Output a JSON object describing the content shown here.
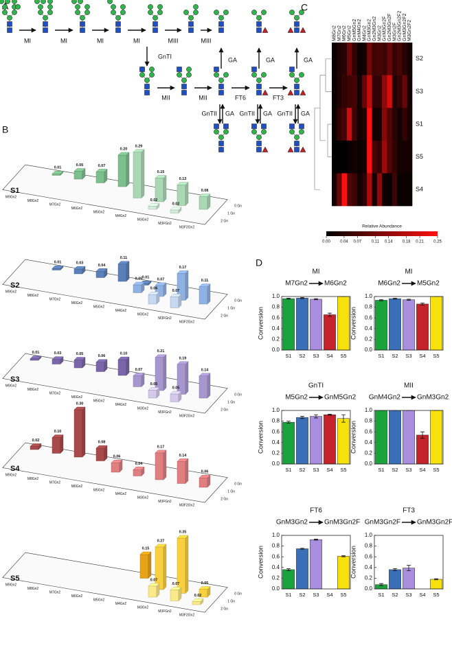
{
  "panel_labels": [
    "A",
    "B",
    "C",
    "D"
  ],
  "pathway": {
    "steps_top": [
      "MI",
      "MI",
      "MI",
      "MI",
      "MIII",
      "MIII"
    ],
    "gnti": "GnTI",
    "steps_middle": [
      "MII",
      "MII",
      "FT6",
      "FT3"
    ],
    "ga_up": [
      "GA",
      "GA",
      "GA"
    ],
    "reversible": [
      {
        "forward": "GnTII",
        "reverse": "GA"
      },
      {
        "forward": "GnTII",
        "reverse": "GA"
      },
      {
        "forward": "GnTII",
        "reverse": "GA"
      }
    ]
  },
  "chart_data": [
    {
      "type": "bar3d",
      "title": "S1",
      "categories": [
        "M9Gn2",
        "M8Gn2",
        "M7Gn2",
        "M6Gn2",
        "M5Gn2",
        "M4Gn2",
        "M3Gn2",
        "M3FGn2",
        "M3F2Gn2"
      ],
      "series": [
        {
          "name": "0 Gn",
          "color": "#7dbf8e",
          "values": [
            null,
            0.01,
            0.05,
            0.07,
            0.2,
            null,
            null,
            null,
            null
          ],
          "value_labels": [
            null,
            "0.01",
            "0.05",
            "0.07",
            "0.20",
            null,
            null,
            null,
            null
          ]
        },
        {
          "name": "1 Gn",
          "color": "#a9d8b4",
          "values": [
            null,
            null,
            null,
            null,
            null,
            0.29,
            0.15,
            0.13,
            0.08
          ],
          "value_labels": [
            null,
            null,
            null,
            null,
            null,
            "0.29",
            "0.15",
            "0.13",
            "0.08"
          ]
        },
        {
          "name": "2 Gn",
          "color": "#d3ecd9",
          "values": [
            null,
            null,
            null,
            null,
            null,
            null,
            0.02,
            0.02,
            null
          ],
          "value_labels": [
            null,
            null,
            null,
            null,
            null,
            null,
            "0.02",
            "0.02",
            null
          ]
        }
      ]
    },
    {
      "type": "bar3d",
      "title": "S2",
      "categories": [
        "M9Gn2",
        "M8Gn2",
        "M7Gn2",
        "M6Gn2",
        "M5Gn2",
        "M4Gn2",
        "M3Gn2",
        "M3FGn2",
        "M3F2Gn2"
      ],
      "series": [
        {
          "name": "0 Gn",
          "color": "#5b7fb8",
          "values": [
            null,
            0.01,
            0.03,
            0.04,
            0.11,
            0.01,
            null,
            null,
            null
          ],
          "value_labels": [
            null,
            "0.01",
            "0.03",
            "0.04",
            "0.11",
            "0.01",
            null,
            null,
            null
          ]
        },
        {
          "name": "1 Gn",
          "color": "#8fb2e3",
          "values": [
            null,
            null,
            null,
            null,
            null,
            0.05,
            0.07,
            0.17,
            0.11
          ],
          "value_labels": [
            null,
            null,
            null,
            null,
            null,
            "0.05",
            "0.07",
            "0.17",
            "0.11"
          ]
        },
        {
          "name": "2 Gn",
          "color": "#c6d8f2",
          "values": [
            null,
            null,
            null,
            null,
            null,
            null,
            0.06,
            0.07,
            null
          ],
          "value_labels": [
            null,
            null,
            null,
            null,
            null,
            null,
            "0.06",
            "0.07",
            null
          ]
        }
      ]
    },
    {
      "type": "bar3d",
      "title": "S3",
      "categories": [
        "M9Gn2",
        "M8Gn2",
        "M7Gn2",
        "M6Gn2",
        "M5Gn2",
        "M4Gn2",
        "M3Gn2",
        "M3FGn2",
        "M3F2Gn2"
      ],
      "series": [
        {
          "name": "0 Gn",
          "color": "#7a66a8",
          "values": [
            0.01,
            0.03,
            0.05,
            0.06,
            0.1,
            null,
            null,
            null,
            null
          ],
          "value_labels": [
            "0.01",
            "0.03",
            "0.05",
            "0.06",
            "0.10",
            null,
            null,
            null,
            null
          ]
        },
        {
          "name": "1 Gn",
          "color": "#a996cf",
          "values": [
            null,
            null,
            null,
            null,
            null,
            0.07,
            0.21,
            0.19,
            0.14
          ],
          "value_labels": [
            null,
            null,
            null,
            null,
            null,
            "0.07",
            "0.21",
            "0.19",
            "0.14"
          ]
        },
        {
          "name": "2 Gn",
          "color": "#d4c9ea",
          "values": [
            null,
            null,
            null,
            null,
            null,
            null,
            0.05,
            0.05,
            null
          ],
          "value_labels": [
            null,
            null,
            null,
            null,
            null,
            null,
            "0.05",
            "0.05",
            null
          ]
        }
      ]
    },
    {
      "type": "bar3d",
      "title": "S4",
      "categories": [
        "M9Gn2",
        "M8Gn2",
        "M7Gn2",
        "M6Gn2",
        "M5Gn2",
        "M4Gn2",
        "M3Gn2",
        "M3FGn2",
        "M3F2Gn2"
      ],
      "series": [
        {
          "name": "0 Gn",
          "color": "#a84a4a",
          "values": [
            0.02,
            0.1,
            0.3,
            0.08,
            null,
            null,
            null,
            null,
            null
          ],
          "value_labels": [
            "0.02",
            "0.10",
            "0.30",
            "0.08",
            null,
            null,
            null,
            null,
            null
          ]
        },
        {
          "name": "1 Gn",
          "color": "#e07f80",
          "values": [
            null,
            null,
            null,
            null,
            0.06,
            0.04,
            0.17,
            0.14,
            0.06
          ],
          "value_labels": [
            null,
            null,
            null,
            null,
            "0.06",
            "0.04",
            "0.17",
            "0.14",
            "0.06"
          ]
        },
        {
          "name": "2 Gn",
          "color": "#f2b8b8",
          "values": [
            null,
            null,
            null,
            null,
            null,
            null,
            null,
            null,
            null
          ],
          "value_labels": [
            null,
            null,
            null,
            null,
            null,
            null,
            null,
            null,
            null
          ]
        }
      ]
    },
    {
      "type": "bar3d",
      "title": "S5",
      "categories": [
        "M9Gn2",
        "M8Gn2",
        "M7Gn2",
        "M6Gn2",
        "M5Gn2",
        "M4Gn2",
        "M3Gn2",
        "M3FGn2",
        "M3F2Gn2"
      ],
      "series": [
        {
          "name": "0 Gn",
          "color": "#e6a31a",
          "values": [
            null,
            null,
            null,
            null,
            null,
            0.15,
            null,
            null,
            null
          ],
          "value_labels": [
            null,
            null,
            null,
            null,
            null,
            "0.15",
            null,
            null,
            null
          ]
        },
        {
          "name": "1 Gn",
          "color": "#f8d040",
          "values": [
            null,
            null,
            null,
            null,
            null,
            null,
            0.27,
            0.35,
            0.05
          ],
          "value_labels": [
            null,
            null,
            null,
            null,
            null,
            null,
            "0.27",
            "0.35",
            "0.05"
          ]
        },
        {
          "name": "2 Gn",
          "color": "#fbe98a",
          "values": [
            null,
            null,
            null,
            null,
            null,
            null,
            0.07,
            0.07,
            0.02
          ],
          "value_labels": [
            null,
            null,
            null,
            null,
            null,
            null,
            "0.07",
            "0.07",
            "0.02"
          ]
        }
      ]
    },
    {
      "type": "heatmap",
      "columns": [
        "M8Gn2",
        "M7Gn2",
        "M6Gn2",
        "M5Gn2",
        "GnM5Gn2",
        "GnM4Gn2",
        "M4Gn2",
        "GnM3Gn2",
        "Gn2M3Gn2",
        "M3Gn2",
        "GnM3Gn2F",
        "Gn2M3Gn2F",
        "M3Gn2F",
        "Gn2M3Gn2F2",
        "GnM3Gn2F2",
        "M3Gn2F2"
      ],
      "rows": [
        "S2",
        "S3",
        "S1",
        "S5",
        "S4"
      ],
      "values": [
        [
          0.01,
          0.03,
          0.04,
          0.11,
          0.05,
          0.01,
          0.02,
          0.11,
          0.06,
          0.07,
          0.06,
          0.1,
          0.05,
          0.07,
          0.04,
          0.02
        ],
        [
          0.01,
          0.03,
          0.05,
          0.06,
          0.07,
          0.02,
          0.1,
          0.19,
          0.05,
          0.05,
          0.14,
          0.21,
          0.03,
          0.05,
          0.1,
          0.02
        ],
        [
          0.01,
          0.05,
          0.07,
          0.2,
          0.06,
          0.02,
          0.03,
          0.25,
          0.02,
          0.02,
          0.13,
          0.08,
          0.04,
          0.02,
          0.05,
          0.02
        ],
        [
          0,
          0,
          0,
          0.01,
          0.02,
          0.01,
          0.02,
          0.25,
          0.07,
          0.05,
          0.15,
          0.08,
          0.05,
          0.02,
          0.02,
          0.02
        ],
        [
          0.02,
          0.1,
          0.25,
          0.08,
          0.06,
          0.02,
          0.04,
          0.17,
          0.02,
          0.14,
          0.02,
          0.01,
          0.06,
          0.01,
          0.01,
          0.01
        ]
      ],
      "colorbar": {
        "label": "Relative Abundance",
        "zlim": [
          0,
          0.25
        ],
        "colors": [
          "#000000",
          "#ff1010"
        ],
        "ticks": [
          {
            "value": 0,
            "label": "0.00"
          },
          0.04,
          0.07,
          0.11,
          0.14,
          0.18,
          0.21,
          0.25
        ]
      }
    },
    {
      "type": "bar",
      "title": "MI",
      "reaction": {
        "from": "M7Gn2",
        "to": "M6Gn2"
      },
      "ylabel": "Conversion",
      "categories": [
        "S1",
        "S2",
        "S3",
        "S4",
        "S5"
      ],
      "values": [
        0.96,
        0.97,
        0.95,
        0.66,
        1
      ],
      "errors": [
        0.01,
        0.01,
        0.01,
        0.03,
        0
      ],
      "colors": [
        "#1aa33c",
        "#3a6fb8",
        "#a98ee0",
        "#c4232b",
        "#f7e10a"
      ],
      "ylim": [
        0,
        1
      ],
      "yticks": [
        {
          "value": 0,
          "label": "0.0"
        },
        0.2,
        0.4,
        0.6,
        0.8,
        {
          "value": 1,
          "label": "1.0"
        }
      ]
    },
    {
      "type": "bar",
      "title": "MI",
      "reaction": {
        "from": "M6Gn2",
        "to": "M5Gn2"
      },
      "ylabel": "Conversion",
      "categories": [
        "S1",
        "S2",
        "S3",
        "S4",
        "S5"
      ],
      "values": [
        0.93,
        0.96,
        0.94,
        0.86,
        1
      ],
      "errors": [
        0.01,
        0.01,
        0.01,
        0.02,
        0
      ],
      "colors": [
        "#1aa33c",
        "#3a6fb8",
        "#a98ee0",
        "#c4232b",
        "#f7e10a"
      ],
      "ylim": [
        0,
        1
      ],
      "yticks": [
        {
          "value": 0,
          "label": "0.0"
        },
        0.2,
        0.4,
        0.6,
        0.8,
        {
          "value": 1,
          "label": "1.0"
        }
      ]
    },
    {
      "type": "bar",
      "title": "GnTI",
      "reaction": {
        "from": "M5Gn2",
        "to": "GnM5Gn2"
      },
      "ylabel": "Conversion",
      "categories": [
        "S1",
        "S2",
        "S3",
        "S4",
        "S5"
      ],
      "values": [
        0.78,
        0.87,
        0.89,
        0.92,
        0.85
      ],
      "errors": [
        0.02,
        0.02,
        0.03,
        0.01,
        0.07
      ],
      "colors": [
        "#1aa33c",
        "#3a6fb8",
        "#a98ee0",
        "#c4232b",
        "#f7e10a"
      ],
      "ylim": [
        0,
        1
      ],
      "yticks": [
        {
          "value": 0,
          "label": "0.0"
        },
        0.2,
        0.4,
        0.6,
        0.8,
        {
          "value": 1,
          "label": "1.0"
        }
      ]
    },
    {
      "type": "bar",
      "title": "MII",
      "reaction": {
        "from": "GnM4Gn2",
        "to": "GnM3Gn2"
      },
      "ylabel": "Conversion",
      "categories": [
        "S1",
        "S2",
        "S3",
        "S4",
        "S5"
      ],
      "values": [
        1,
        1,
        1,
        0.54,
        1
      ],
      "errors": [
        0,
        0,
        0,
        0.06,
        0
      ],
      "colors": [
        "#1aa33c",
        "#3a6fb8",
        "#a98ee0",
        "#c4232b",
        "#f7e10a"
      ],
      "ylim": [
        0,
        1
      ],
      "yticks": [
        {
          "value": 0,
          "label": "0.0"
        },
        0.2,
        0.4,
        0.6,
        0.8,
        {
          "value": 1,
          "label": "1.0"
        }
      ]
    },
    {
      "type": "bar",
      "title": "FT6",
      "reaction": {
        "from": "GnM3Gn2",
        "to": "GnM3Gn2F"
      },
      "ylabel": "Conversion",
      "categories": [
        "S1",
        "S2",
        "S3",
        "S4",
        "S5"
      ],
      "values": [
        0.36,
        0.75,
        0.92,
        null,
        0.61
      ],
      "errors": [
        0.02,
        0.01,
        0.01,
        null,
        0.01
      ],
      "colors": [
        "#1aa33c",
        "#3a6fb8",
        "#a98ee0",
        "#c4232b",
        "#f7e10a"
      ],
      "ylim": [
        0,
        1
      ],
      "yticks": [
        {
          "value": 0,
          "label": "0.0"
        },
        0.2,
        0.4,
        0.6,
        0.8,
        {
          "value": 1,
          "label": "1.0"
        }
      ]
    },
    {
      "type": "bar",
      "title": "FT3",
      "reaction": {
        "from": "GnM3Gn2F",
        "to": "GnM3Gn2F2"
      },
      "ylabel": "Conversion",
      "categories": [
        "S1",
        "S2",
        "S3",
        "S4",
        "S5"
      ],
      "values": [
        0.08,
        0.36,
        0.39,
        null,
        0.18
      ],
      "errors": [
        0.02,
        0.02,
        0.05,
        null,
        0.01
      ],
      "colors": [
        "#1aa33c",
        "#3a6fb8",
        "#a98ee0",
        "#c4232b",
        "#f7e10a"
      ],
      "ylim": [
        0,
        1
      ],
      "yticks": [
        {
          "value": 0,
          "label": "0.0"
        },
        0.2,
        0.4,
        0.6,
        0.8,
        {
          "value": 1,
          "label": "1.0"
        }
      ]
    }
  ]
}
